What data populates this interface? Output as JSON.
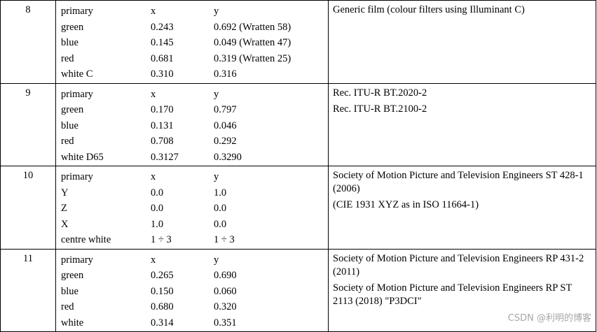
{
  "rows": [
    {
      "index": "8",
      "header": [
        "primary",
        "x",
        "y"
      ],
      "entries": [
        [
          "green",
          "0.243",
          "0.692 (Wratten 58)"
        ],
        [
          "blue",
          "0.145",
          "0.049 (Wratten 47)"
        ],
        [
          "red",
          "0.681",
          "0.319 (Wratten 25)"
        ],
        [
          "white C",
          "0.310",
          "0.316"
        ]
      ],
      "notes": [
        "Generic film (colour filters using Illuminant C)"
      ]
    },
    {
      "index": "9",
      "header": [
        "primary",
        "x",
        "y"
      ],
      "entries": [
        [
          "green",
          "0.170",
          "0.797"
        ],
        [
          "blue",
          "0.131",
          "0.046"
        ],
        [
          "red",
          "0.708",
          "0.292"
        ],
        [
          "white D65",
          "0.3127",
          "0.3290"
        ]
      ],
      "notes": [
        "Rec. ITU-R BT.2020-2",
        "Rec. ITU-R BT.2100-2"
      ]
    },
    {
      "index": "10",
      "header": [
        "primary",
        "x",
        "y"
      ],
      "entries": [
        [
          "Y",
          "0.0",
          "1.0"
        ],
        [
          "Z",
          "0.0",
          "0.0"
        ],
        [
          "X",
          "1.0",
          "0.0"
        ],
        [
          "centre white",
          "1 ÷ 3",
          "1 ÷ 3"
        ]
      ],
      "notes": [
        "Society of Motion Picture and Television Engineers ST 428-1 (2006)",
        "(CIE 1931 XYZ as in ISO 11664-1)"
      ]
    },
    {
      "index": "11",
      "header": [
        "primary",
        "x",
        "y"
      ],
      "entries": [
        [
          "green",
          "0.265",
          "0.690"
        ],
        [
          "blue",
          "0.150",
          "0.060"
        ],
        [
          "red",
          "0.680",
          "0.320"
        ],
        [
          "white",
          "0.314",
          "0.351"
        ]
      ],
      "notes": [
        "Society of Motion Picture and Television Engineers RP 431-2 (2011)",
        "Society of Motion Picture and Television Engineers RP ST 2113 (2018) \"P3DCI\""
      ]
    }
  ],
  "watermark": "CSDN @利明的博客"
}
